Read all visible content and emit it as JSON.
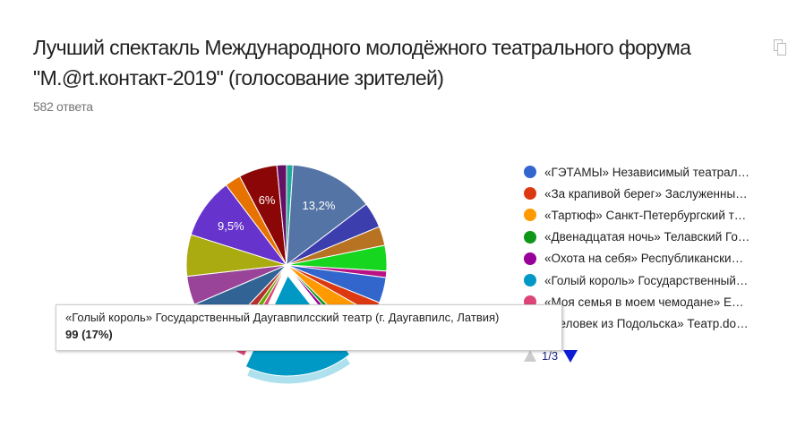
{
  "header": {
    "title": "Лучший спектакль Международного молодёжного театрального форума \"M.@rt.контакт-2019\" (голосование зрителей)",
    "responses": "582 ответа"
  },
  "tooltip": {
    "label": "«Голый король» Государственный Даугавпилсский театр (г. Даугавпилс, Латвия)",
    "value": "99 (17%)"
  },
  "legend": {
    "items": [
      {
        "label": "«ГЭТАМЫ» Независимый театрал…",
        "color": "#3366cc"
      },
      {
        "label": "«За крапивой берег» Заслуженны…",
        "color": "#dc3912"
      },
      {
        "label": "«Тартюф» Санкт-Петербургский т…",
        "color": "#ff9900"
      },
      {
        "label": "«Двенадцатая ночь» Телавский Го…",
        "color": "#109618"
      },
      {
        "label": "«Охота на себя» Республикански…",
        "color": "#990099"
      },
      {
        "label": "«Голый король» Государственный…",
        "color": "#0099c6"
      },
      {
        "label": "«Моя семья в моем чемодане» Е…",
        "color": "#dd4477"
      },
      {
        "label": "«Человек из Подольска» Театр.do…",
        "color": "#66aa00"
      }
    ],
    "page": "1/3"
  },
  "chart_data": {
    "type": "pie",
    "title": "Лучший спектакль Международного молодёжного театрального форума \"M.@rt.контакт-2019\" (голосование зрителей)",
    "total_responses": 582,
    "highlighted": "«Голый король» Государственный Даугавпилсский театр (г. Даугавпилс, Латвия)",
    "slices": [
      {
        "value": 1.0,
        "color": "#22aa99",
        "label": ""
      },
      {
        "value": 13.2,
        "color": "#5574a6",
        "label": "13,2%"
      },
      {
        "value": 4.0,
        "color": "#3b3eac",
        "label": ""
      },
      {
        "value": 3.0,
        "color": "#b77322",
        "label": ""
      },
      {
        "value": 4.0,
        "color": "#16d620",
        "label": ""
      },
      {
        "value": 1.0,
        "color": "#b91383",
        "label": ""
      },
      {
        "value": 4.0,
        "color": "#3366cc",
        "label": ""
      },
      {
        "value": 2.0,
        "color": "#dc3912",
        "label": ""
      },
      {
        "value": 4.0,
        "color": "#ff9900",
        "label": ""
      },
      {
        "value": 1.0,
        "color": "#109618",
        "label": ""
      },
      {
        "value": 1.0,
        "color": "#990099",
        "label": ""
      },
      {
        "value": 17.0,
        "color": "#0099c6",
        "label": "",
        "exploded": true
      },
      {
        "value": 1.5,
        "color": "#dd4477",
        "label": ""
      },
      {
        "value": 1.5,
        "color": "#66aa00",
        "label": ""
      },
      {
        "value": 2.0,
        "color": "#b82e2e",
        "label": ""
      },
      {
        "value": 6.3,
        "color": "#316395",
        "label": ""
      },
      {
        "value": 4.5,
        "color": "#994499",
        "label": ""
      },
      {
        "value": 6.5,
        "color": "#aaaa11",
        "label": ""
      },
      {
        "value": 9.5,
        "color": "#6633cc",
        "label": "9,5%"
      },
      {
        "value": 2.5,
        "color": "#e67300",
        "label": ""
      },
      {
        "value": 6.0,
        "color": "#8b0707",
        "label": "6%"
      },
      {
        "value": 1.5,
        "color": "#651067",
        "label": ""
      }
    ]
  }
}
